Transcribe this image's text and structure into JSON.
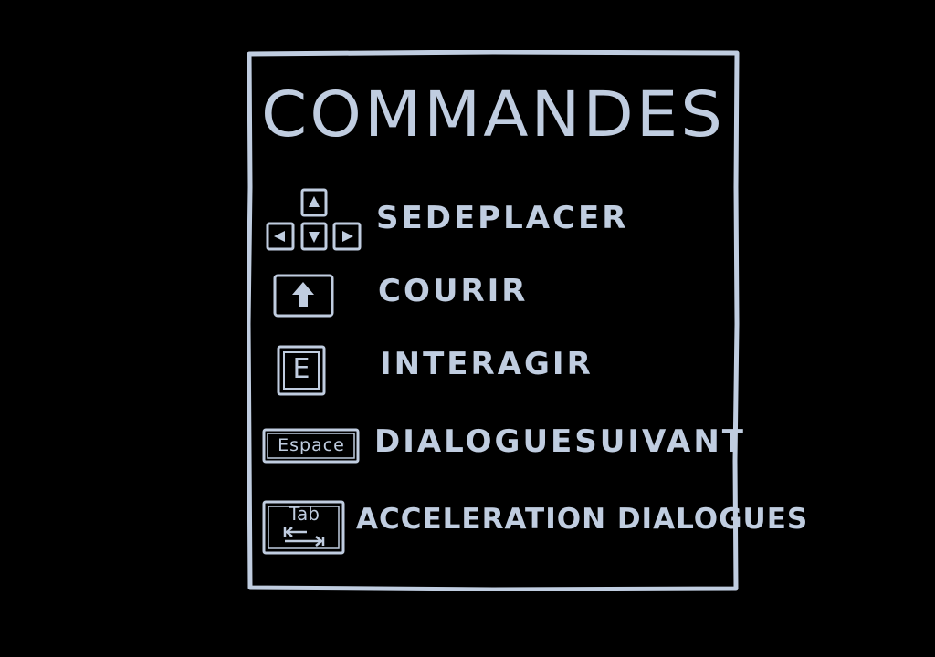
{
  "screen": {
    "background": "#000000",
    "ink_color": "#c0cde0"
  },
  "panel": {
    "title": "COMMANDES",
    "controls": [
      {
        "key_icon": "arrow-keys-icon",
        "label": "SEDEPLACER"
      },
      {
        "key_icon": "shift-key-icon",
        "label": "COURIR"
      },
      {
        "key_icon": "e-key-icon",
        "key_text": "E",
        "label": "INTERAGIR"
      },
      {
        "key_icon": "space-key-icon",
        "key_text": "Espace",
        "label": "DIALOGUESUIVANT"
      },
      {
        "key_icon": "tab-key-icon",
        "key_text": "Tab",
        "label": "ACCELERATION DIALOGUES"
      }
    ]
  }
}
